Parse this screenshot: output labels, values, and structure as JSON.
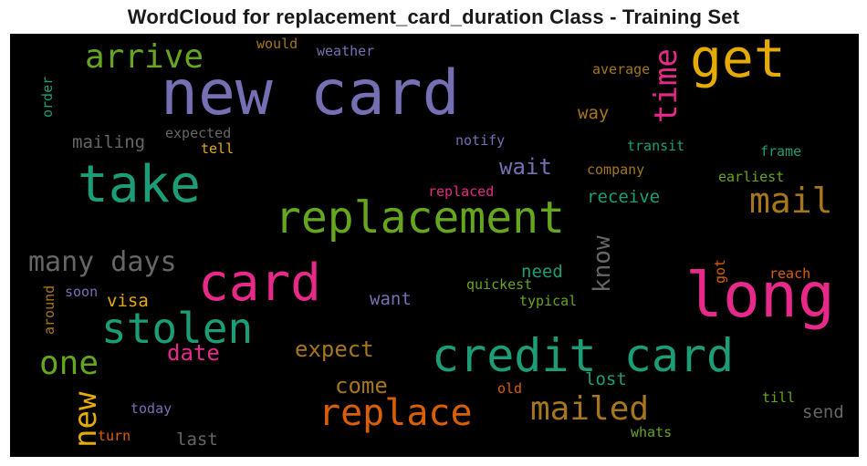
{
  "title": "WordCloud for replacement_card_duration Class - Training Set",
  "colors": {
    "purple": "#7570b3",
    "green": "#1b9e77",
    "lime": "#66a61e",
    "pink": "#e7298a",
    "orange": "#d95f02",
    "gold": "#e6ab02",
    "brown": "#a6761d",
    "gray": "#666666"
  },
  "words": {
    "new_card": "new card",
    "long": "long",
    "get": "get",
    "take": "take",
    "replacement": "replacement",
    "credit_card": "credit card",
    "card": "card",
    "stolen": "stolen",
    "replace": "replace",
    "mail": "mail",
    "mailed": "mailed",
    "arrive": "arrive",
    "time": "time",
    "many_days": "many days",
    "one": "one",
    "new": "new",
    "expect": "expect",
    "know": "know",
    "date": "date",
    "come": "come",
    "wait": "wait",
    "mailing": "mailing",
    "way": "way",
    "receive": "receive",
    "lost": "lost",
    "last": "last",
    "send": "send",
    "need": "need",
    "want": "want",
    "visa": "visa",
    "would": "would",
    "weather": "weather",
    "average": "average",
    "order": "order",
    "expected": "expected",
    "tell": "tell",
    "notify": "notify",
    "transit": "transit",
    "frame": "frame",
    "company": "company",
    "earliest": "earliest",
    "replaced": "replaced",
    "quickest": "quickest",
    "typical": "typical",
    "got": "got",
    "reach": "reach",
    "soon": "soon",
    "around": "around",
    "today": "today",
    "turn": "turn",
    "old": "old",
    "till": "till",
    "whats": "whats"
  }
}
